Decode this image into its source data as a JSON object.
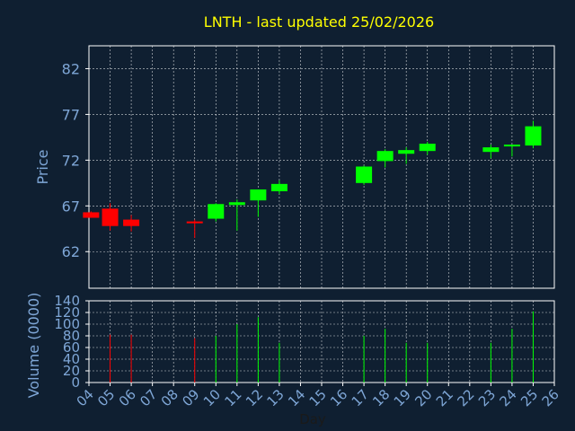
{
  "title": "LNTH - last updated 25/02/2026",
  "colors": {
    "background": "#0f1f31",
    "title": "#ffff00",
    "axis_text": "#7ea6d6",
    "frame": "#ffffff",
    "grid": "#ffffff",
    "up": "#00ff00",
    "down": "#ff0000"
  },
  "chart_data": [
    {
      "type": "candlestick",
      "ylabel": "Price",
      "ylim": [
        58,
        84.5
      ],
      "yticks": [
        62,
        67,
        72,
        77,
        82
      ],
      "xlim": [
        4,
        26
      ],
      "grid": true,
      "candles": [
        {
          "day": 4.1,
          "open": 66.3,
          "high": 66.4,
          "low": 65.7,
          "close": 65.7
        },
        {
          "day": 5,
          "open": 66.7,
          "high": 67.3,
          "low": 64.3,
          "close": 64.8
        },
        {
          "day": 6,
          "open": 65.5,
          "high": 66.0,
          "low": 64.2,
          "close": 64.8
        },
        {
          "day": 9,
          "open": 65.3,
          "high": 65.5,
          "low": 63.5,
          "close": 65.1
        },
        {
          "day": 10,
          "open": 65.6,
          "high": 67.3,
          "low": 65.3,
          "close": 67.2
        },
        {
          "day": 11,
          "open": 67.1,
          "high": 67.7,
          "low": 64.3,
          "close": 67.4
        },
        {
          "day": 12,
          "open": 67.6,
          "high": 68.8,
          "low": 65.8,
          "close": 68.8
        },
        {
          "day": 13,
          "open": 68.6,
          "high": 69.8,
          "low": 68.3,
          "close": 69.4
        },
        {
          "day": 17,
          "open": 69.5,
          "high": 71.4,
          "low": 69.3,
          "close": 71.3
        },
        {
          "day": 18,
          "open": 71.9,
          "high": 73.2,
          "low": 71.2,
          "close": 73.0
        },
        {
          "day": 19,
          "open": 72.7,
          "high": 73.4,
          "low": 71.6,
          "close": 73.1
        },
        {
          "day": 20,
          "open": 73.0,
          "high": 74.0,
          "low": 72.6,
          "close": 73.8
        },
        {
          "day": 23,
          "open": 72.9,
          "high": 73.7,
          "low": 72.2,
          "close": 73.4
        },
        {
          "day": 24,
          "open": 73.5,
          "high": 73.7,
          "low": 72.4,
          "close": 73.7
        },
        {
          "day": 25,
          "open": 73.6,
          "high": 76.3,
          "low": 73.3,
          "close": 75.7
        }
      ]
    },
    {
      "type": "bar",
      "ylabel": "Volume (0000)",
      "xlabel": "Day",
      "ylim": [
        0,
        140
      ],
      "yticks": [
        0,
        20,
        40,
        60,
        80,
        100,
        120,
        140
      ],
      "xlim": [
        4,
        26
      ],
      "xticks": [
        "04",
        "05",
        "06",
        "07",
        "08",
        "09",
        "10",
        "11",
        "12",
        "13",
        "14",
        "15",
        "16",
        "17",
        "18",
        "19",
        "20",
        "21",
        "22",
        "23",
        "24",
        "25",
        "26"
      ],
      "grid": true,
      "bars": [
        {
          "day": 5,
          "value": 82,
          "direction": "down"
        },
        {
          "day": 6,
          "value": 82,
          "direction": "down"
        },
        {
          "day": 9,
          "value": 76,
          "direction": "down"
        },
        {
          "day": 10,
          "value": 80,
          "direction": "up"
        },
        {
          "day": 11,
          "value": 100,
          "direction": "up"
        },
        {
          "day": 12,
          "value": 112,
          "direction": "up"
        },
        {
          "day": 13,
          "value": 68,
          "direction": "up"
        },
        {
          "day": 17,
          "value": 80,
          "direction": "up"
        },
        {
          "day": 18,
          "value": 92,
          "direction": "up"
        },
        {
          "day": 19,
          "value": 68,
          "direction": "up"
        },
        {
          "day": 20,
          "value": 68,
          "direction": "up"
        },
        {
          "day": 23,
          "value": 68,
          "direction": "up"
        },
        {
          "day": 24,
          "value": 92,
          "direction": "up"
        },
        {
          "day": 25,
          "value": 122,
          "direction": "up"
        }
      ]
    }
  ]
}
